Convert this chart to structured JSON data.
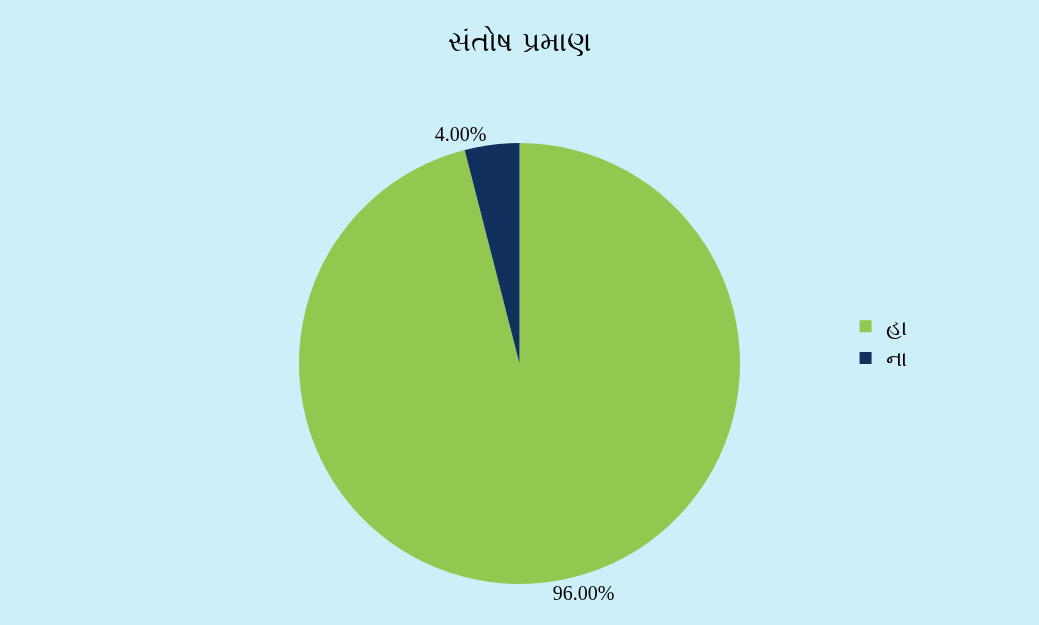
{
  "chart_data": {
    "type": "pie",
    "title": "સંતોષ પ્રમાણ",
    "categories": [
      "હા",
      "ના"
    ],
    "values": [
      96,
      4
    ],
    "colors": [
      "#92c84f",
      "#12305e"
    ],
    "value_labels": [
      "96.00%",
      "4.00%"
    ],
    "legend": "right"
  }
}
